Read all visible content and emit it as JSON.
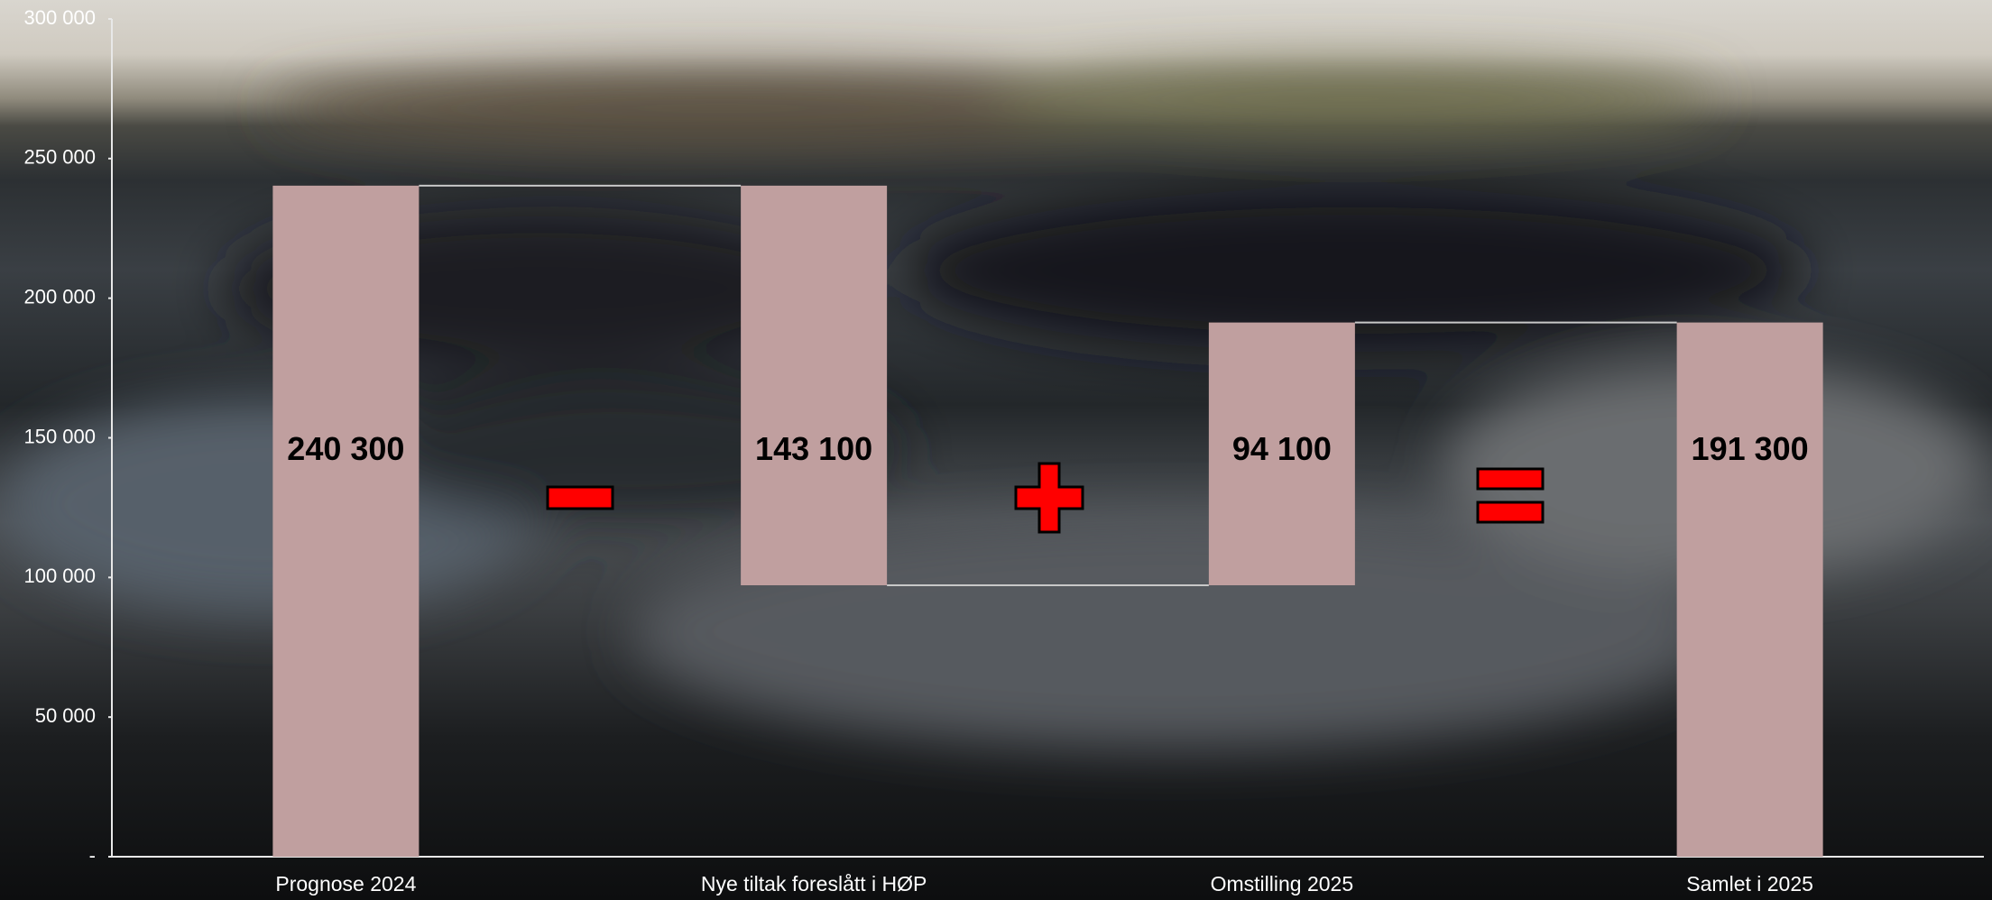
{
  "chart_data": {
    "type": "waterfall",
    "categories": [
      "Prognose 2024",
      "Nye tiltak foreslått i HØP",
      "Omstilling 2025",
      "Samlet i 2025"
    ],
    "measure": [
      "absolute",
      "relative",
      "relative",
      "total"
    ],
    "values": [
      240300,
      -143100,
      94100,
      191300
    ],
    "value_labels": [
      "240 300",
      "143 100",
      "94 100",
      "191 300"
    ],
    "color": "#c09f9f",
    "ylim": [
      0,
      300000
    ],
    "yticks": [
      {
        "value": 0,
        "label": "-"
      },
      {
        "value": 50000,
        "label": "50 000"
      },
      {
        "value": 100000,
        "label": "100 000"
      },
      {
        "value": 150000,
        "label": "150 000"
      },
      {
        "value": 200000,
        "label": "200 000"
      },
      {
        "value": 250000,
        "label": "250 000"
      },
      {
        "value": 300000,
        "label": "300 000"
      }
    ],
    "grid": false
  }
}
